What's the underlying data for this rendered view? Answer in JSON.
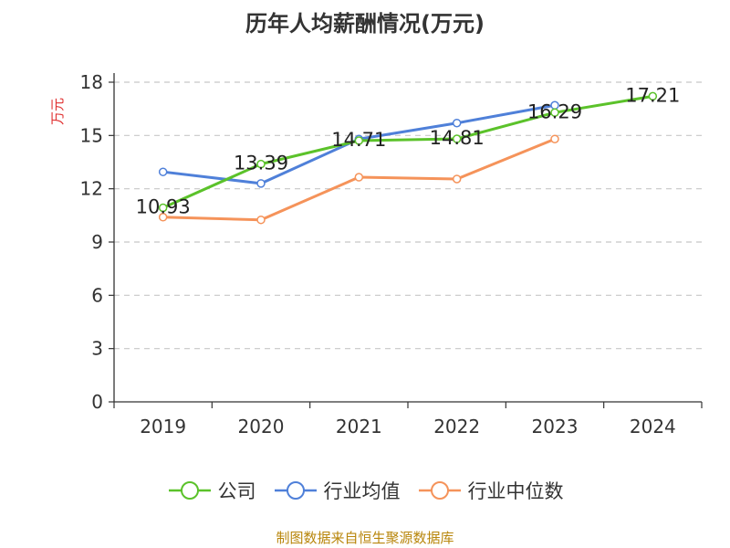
{
  "chart_data": {
    "type": "line",
    "title": "历年人均薪酬情况(万元)",
    "ylabel": "万元",
    "ylim": [
      0,
      18
    ],
    "yticks": [
      "0",
      "3",
      "6",
      "9",
      "12",
      "15",
      "18"
    ],
    "categories": [
      "2019",
      "2020",
      "2021",
      "2022",
      "2023",
      "2024"
    ],
    "grid": true,
    "legend_position": "bottom",
    "series": [
      {
        "name": "公司",
        "color": "#5bc22a",
        "values": [
          10.93,
          13.39,
          14.71,
          14.81,
          16.29,
          17.21
        ],
        "labels": [
          "10.93",
          "13.39",
          "14.71",
          "14.81",
          "16.29",
          "17.21"
        ]
      },
      {
        "name": "行业均值",
        "color": "#4f80d9",
        "values": [
          12.95,
          12.3,
          14.8,
          15.7,
          16.7,
          null
        ]
      },
      {
        "name": "行业中位数",
        "color": "#f5935a",
        "values": [
          10.4,
          10.25,
          12.65,
          12.55,
          14.8,
          null
        ]
      }
    ]
  },
  "footer": "制图数据来自恒生聚源数据库"
}
